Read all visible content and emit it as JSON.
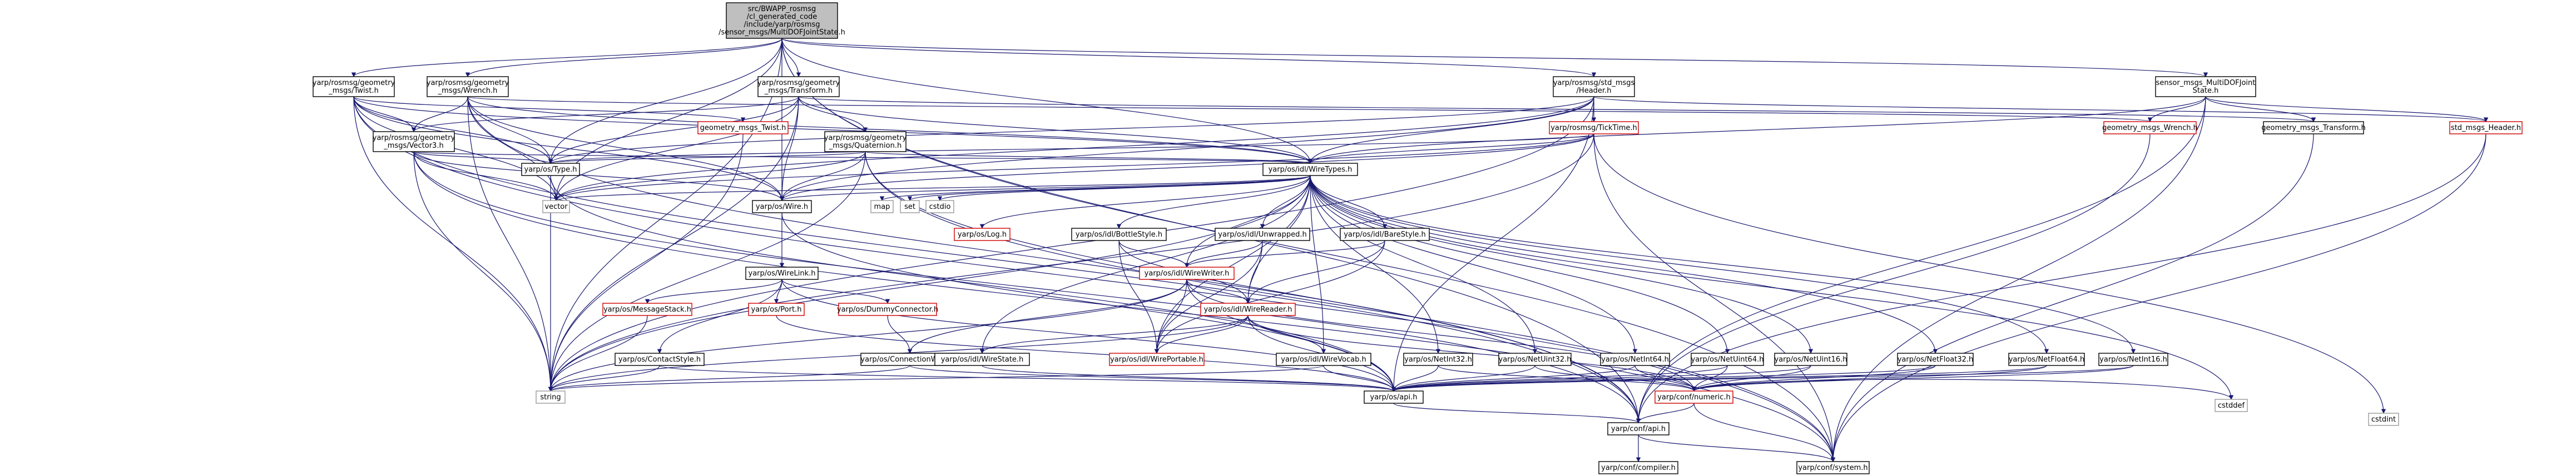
{
  "nodes": [
    {
      "id": "root",
      "lines": [
        "src/BWAPP_rosmsg",
        "/cl_generated_code",
        "/include/yarp/rosmsg",
        "/sensor_msgs/MultiDOFJointState.h"
      ],
      "kind": "root"
    },
    {
      "id": "twist_h",
      "lines": [
        "yarp/rosmsg/geometry",
        "_msgs/Twist.h"
      ],
      "kind": "normal"
    },
    {
      "id": "wrench_h",
      "lines": [
        "yarp/rosmsg/geometry",
        "_msgs/Wrench.h"
      ],
      "kind": "normal"
    },
    {
      "id": "transform_h",
      "lines": [
        "yarp/rosmsg/geometry",
        "_msgs/Transform.h"
      ],
      "kind": "normal"
    },
    {
      "id": "std_header",
      "lines": [
        "yarp/rosmsg/std_msgs",
        "/Header.h"
      ],
      "kind": "normal"
    },
    {
      "id": "multidof",
      "lines": [
        "sensor_msgs_MultiDOFJoint",
        "State.h"
      ],
      "kind": "normal"
    },
    {
      "id": "vector3_h",
      "lines": [
        "yarp/rosmsg/geometry",
        "_msgs/Vector3.h"
      ],
      "kind": "normal"
    },
    {
      "id": "gm_twist",
      "lines": [
        "geometry_msgs_Twist.h"
      ],
      "kind": "red"
    },
    {
      "id": "quaternion_h",
      "lines": [
        "yarp/rosmsg/geometry",
        "_msgs/Quaternion.h"
      ],
      "kind": "normal"
    },
    {
      "id": "ticktime",
      "lines": [
        "yarp/rosmsg/TickTime.h"
      ],
      "kind": "red"
    },
    {
      "id": "gm_wrench",
      "lines": [
        "geometry_msgs_Wrench.h"
      ],
      "kind": "red"
    },
    {
      "id": "gm_transform",
      "lines": [
        "geometry_msgs_Transform.h"
      ],
      "kind": "normal"
    },
    {
      "id": "stdmsgs_header",
      "lines": [
        "std_msgs_Header.h"
      ],
      "kind": "red"
    },
    {
      "id": "type_h",
      "lines": [
        "yarp/os/Type.h"
      ],
      "kind": "normal"
    },
    {
      "id": "wiretypes",
      "lines": [
        "yarp/os/idl/WireTypes.h"
      ],
      "kind": "normal"
    },
    {
      "id": "vector",
      "lines": [
        "vector"
      ],
      "kind": "grey"
    },
    {
      "id": "wire_h",
      "lines": [
        "yarp/os/Wire.h"
      ],
      "kind": "normal"
    },
    {
      "id": "map",
      "lines": [
        "map"
      ],
      "kind": "grey"
    },
    {
      "id": "set",
      "lines": [
        "set"
      ],
      "kind": "grey"
    },
    {
      "id": "cstdio",
      "lines": [
        "cstdio"
      ],
      "kind": "grey"
    },
    {
      "id": "log_h",
      "lines": [
        "yarp/os/Log.h"
      ],
      "kind": "red"
    },
    {
      "id": "bottlestyle",
      "lines": [
        "yarp/os/idl/BottleStyle.h"
      ],
      "kind": "normal"
    },
    {
      "id": "unwrapped",
      "lines": [
        "yarp/os/idl/Unwrapped.h"
      ],
      "kind": "normal"
    },
    {
      "id": "barestyle",
      "lines": [
        "yarp/os/idl/BareStyle.h"
      ],
      "kind": "normal"
    },
    {
      "id": "wirewriter",
      "lines": [
        "yarp/os/idl/WireWriter.h"
      ],
      "kind": "red"
    },
    {
      "id": "wirelink",
      "lines": [
        "yarp/os/WireLink.h"
      ],
      "kind": "normal"
    },
    {
      "id": "messagestack",
      "lines": [
        "yarp/os/MessageStack.h"
      ],
      "kind": "red"
    },
    {
      "id": "port_h",
      "lines": [
        "yarp/os/Port.h"
      ],
      "kind": "red"
    },
    {
      "id": "dummyconn",
      "lines": [
        "yarp/os/DummyConnector.h"
      ],
      "kind": "red"
    },
    {
      "id": "wirereader",
      "lines": [
        "yarp/os/idl/WireReader.h"
      ],
      "kind": "red"
    },
    {
      "id": "contactstyle",
      "lines": [
        "yarp/os/ContactStyle.h"
      ],
      "kind": "normal"
    },
    {
      "id": "connwriter",
      "lines": [
        "yarp/os/ConnectionWriter.h"
      ],
      "kind": "normal"
    },
    {
      "id": "wirestate",
      "lines": [
        "yarp/os/idl/WireState.h"
      ],
      "kind": "normal"
    },
    {
      "id": "wireportable",
      "lines": [
        "yarp/os/idl/WirePortable.h"
      ],
      "kind": "red"
    },
    {
      "id": "wirevocab",
      "lines": [
        "yarp/os/idl/WireVocab.h"
      ],
      "kind": "normal"
    },
    {
      "id": "netint32",
      "lines": [
        "yarp/os/NetInt32.h"
      ],
      "kind": "normal"
    },
    {
      "id": "netuint32",
      "lines": [
        "yarp/os/NetUint32.h"
      ],
      "kind": "normal"
    },
    {
      "id": "netint64",
      "lines": [
        "yarp/os/NetInt64.h"
      ],
      "kind": "normal"
    },
    {
      "id": "netuint16",
      "lines": [
        "yarp/os/NetUint16.h"
      ],
      "kind": "normal"
    },
    {
      "id": "netuint64",
      "lines": [
        "yarp/os/NetUint64.h"
      ],
      "kind": "normal"
    },
    {
      "id": "netfloat32",
      "lines": [
        "yarp/os/NetFloat32.h"
      ],
      "kind": "normal"
    },
    {
      "id": "netfloat64",
      "lines": [
        "yarp/os/NetFloat64.h"
      ],
      "kind": "normal"
    },
    {
      "id": "netint16",
      "lines": [
        "yarp/os/NetInt16.h"
      ],
      "kind": "normal"
    },
    {
      "id": "string",
      "lines": [
        "string"
      ],
      "kind": "grey"
    },
    {
      "id": "os_api",
      "lines": [
        "yarp/os/api.h"
      ],
      "kind": "normal"
    },
    {
      "id": "numeric",
      "lines": [
        "yarp/conf/numeric.h"
      ],
      "kind": "red"
    },
    {
      "id": "cstddef",
      "lines": [
        "cstddef"
      ],
      "kind": "grey"
    },
    {
      "id": "cstdint",
      "lines": [
        "cstdint"
      ],
      "kind": "grey"
    },
    {
      "id": "conf_api",
      "lines": [
        "yarp/conf/api.h"
      ],
      "kind": "normal"
    },
    {
      "id": "compiler",
      "lines": [
        "yarp/conf/compiler.h"
      ],
      "kind": "normal"
    },
    {
      "id": "system",
      "lines": [
        "yarp/conf/system.h"
      ],
      "kind": "normal"
    }
  ],
  "edges": [
    [
      "root",
      "twist_h"
    ],
    [
      "root",
      "wrench_h"
    ],
    [
      "root",
      "transform_h"
    ],
    [
      "root",
      "std_header"
    ],
    [
      "root",
      "multidof"
    ],
    [
      "root",
      "wiretypes"
    ],
    [
      "root",
      "type_h"
    ],
    [
      "root",
      "wire_h"
    ],
    [
      "root",
      "vector"
    ],
    [
      "root",
      "string"
    ],
    [
      "root",
      "conf_api"
    ],
    [
      "root",
      "system"
    ],
    [
      "twist_h",
      "vector3_h"
    ],
    [
      "twist_h",
      "gm_twist"
    ],
    [
      "twist_h",
      "type_h"
    ],
    [
      "twist_h",
      "wire_h"
    ],
    [
      "twist_h",
      "wiretypes"
    ],
    [
      "twist_h",
      "vector"
    ],
    [
      "twist_h",
      "string"
    ],
    [
      "twist_h",
      "conf_api"
    ],
    [
      "twist_h",
      "system"
    ],
    [
      "wrench_h",
      "vector3_h"
    ],
    [
      "wrench_h",
      "gm_wrench"
    ],
    [
      "wrench_h",
      "type_h"
    ],
    [
      "wrench_h",
      "wire_h"
    ],
    [
      "wrench_h",
      "wiretypes"
    ],
    [
      "wrench_h",
      "vector"
    ],
    [
      "wrench_h",
      "string"
    ],
    [
      "wrench_h",
      "conf_api"
    ],
    [
      "transform_h",
      "vector3_h"
    ],
    [
      "transform_h",
      "quaternion_h"
    ],
    [
      "transform_h",
      "gm_transform"
    ],
    [
      "transform_h",
      "type_h"
    ],
    [
      "transform_h",
      "wire_h"
    ],
    [
      "transform_h",
      "wiretypes"
    ],
    [
      "transform_h",
      "vector"
    ],
    [
      "transform_h",
      "string"
    ],
    [
      "std_header",
      "ticktime"
    ],
    [
      "std_header",
      "stdmsgs_header"
    ],
    [
      "std_header",
      "wiretypes"
    ],
    [
      "std_header",
      "type_h"
    ],
    [
      "std_header",
      "wire_h"
    ],
    [
      "std_header",
      "vector"
    ],
    [
      "std_header",
      "string"
    ],
    [
      "std_header",
      "os_api"
    ],
    [
      "multidof",
      "gm_transform"
    ],
    [
      "multidof",
      "stdmsgs_header"
    ],
    [
      "multidof",
      "gm_wrench"
    ],
    [
      "multidof",
      "wiretypes"
    ],
    [
      "multidof",
      "conf_api"
    ],
    [
      "multidof",
      "system"
    ],
    [
      "vector3_h",
      "type_h"
    ],
    [
      "vector3_h",
      "wire_h"
    ],
    [
      "vector3_h",
      "wiretypes"
    ],
    [
      "vector3_h",
      "vector"
    ],
    [
      "vector3_h",
      "string"
    ],
    [
      "vector3_h",
      "conf_api"
    ],
    [
      "vector3_h",
      "system"
    ],
    [
      "quaternion_h",
      "type_h"
    ],
    [
      "quaternion_h",
      "wire_h"
    ],
    [
      "quaternion_h",
      "wiretypes"
    ],
    [
      "quaternion_h",
      "vector"
    ],
    [
      "quaternion_h",
      "string"
    ],
    [
      "quaternion_h",
      "conf_api"
    ],
    [
      "quaternion_h",
      "system"
    ],
    [
      "gm_twist",
      "string"
    ],
    [
      "gm_wrench",
      "conf_api"
    ],
    [
      "gm_transform",
      "system"
    ],
    [
      "stdmsgs_header",
      "system"
    ],
    [
      "stdmsgs_header",
      "conf_api"
    ],
    [
      "ticktime",
      "type_h"
    ],
    [
      "ticktime",
      "wire_h"
    ],
    [
      "ticktime",
      "wiretypes"
    ],
    [
      "ticktime",
      "vector"
    ],
    [
      "ticktime",
      "string"
    ],
    [
      "ticktime",
      "cstdint"
    ],
    [
      "ticktime",
      "system"
    ],
    [
      "type_h",
      "string"
    ],
    [
      "type_h",
      "os_api"
    ],
    [
      "wiretypes",
      "wire_h"
    ],
    [
      "wiretypes",
      "map"
    ],
    [
      "wiretypes",
      "set"
    ],
    [
      "wiretypes",
      "cstdio"
    ],
    [
      "wiretypes",
      "vector"
    ],
    [
      "wiretypes",
      "string"
    ],
    [
      "wiretypes",
      "log_h"
    ],
    [
      "wiretypes",
      "bottlestyle"
    ],
    [
      "wiretypes",
      "unwrapped"
    ],
    [
      "wiretypes",
      "barestyle"
    ],
    [
      "wiretypes",
      "wirewriter"
    ],
    [
      "wiretypes",
      "wirereader"
    ],
    [
      "wiretypes",
      "wirestate"
    ],
    [
      "wiretypes",
      "wireportable"
    ],
    [
      "wiretypes",
      "wirevocab"
    ],
    [
      "wiretypes",
      "netint32"
    ],
    [
      "wiretypes",
      "netuint32"
    ],
    [
      "wiretypes",
      "netint64"
    ],
    [
      "wiretypes",
      "netuint16"
    ],
    [
      "wiretypes",
      "netuint64"
    ],
    [
      "wiretypes",
      "netfloat32"
    ],
    [
      "wiretypes",
      "netfloat64"
    ],
    [
      "wiretypes",
      "netint16"
    ],
    [
      "wiretypes",
      "cstddef"
    ],
    [
      "wire_h",
      "wirelink"
    ],
    [
      "wire_h",
      "os_api"
    ],
    [
      "wirelink",
      "messagestack"
    ],
    [
      "wirelink",
      "port_h"
    ],
    [
      "wirelink",
      "dummyconn"
    ],
    [
      "wirelink",
      "contactstyle"
    ],
    [
      "wirelink",
      "os_api"
    ],
    [
      "messagestack",
      "string"
    ],
    [
      "port_h",
      "os_api"
    ],
    [
      "dummyconn",
      "connwriter"
    ],
    [
      "contactstyle",
      "string"
    ],
    [
      "contactstyle",
      "os_api"
    ],
    [
      "connwriter",
      "string"
    ],
    [
      "connwriter",
      "os_api"
    ],
    [
      "bottlestyle",
      "wirewriter"
    ],
    [
      "bottlestyle",
      "wirereader"
    ],
    [
      "bottlestyle",
      "wireportable"
    ],
    [
      "unwrapped",
      "wirewriter"
    ],
    [
      "unwrapped",
      "wirereader"
    ],
    [
      "unwrapped",
      "wireportable"
    ],
    [
      "barestyle",
      "wirewriter"
    ],
    [
      "barestyle",
      "wirereader"
    ],
    [
      "barestyle",
      "wireportable"
    ],
    [
      "wirewriter",
      "wirereader"
    ],
    [
      "wirewriter",
      "wireportable"
    ],
    [
      "wirewriter",
      "connwriter"
    ],
    [
      "wirewriter",
      "string"
    ],
    [
      "wirewriter",
      "os_api"
    ],
    [
      "wirewriter",
      "numeric"
    ],
    [
      "wirereader",
      "wirestate"
    ],
    [
      "wirereader",
      "wireportable"
    ],
    [
      "wirereader",
      "wirevocab"
    ],
    [
      "wirereader",
      "string"
    ],
    [
      "wirereader",
      "os_api"
    ],
    [
      "wirereader",
      "numeric"
    ],
    [
      "wirestate",
      "os_api"
    ],
    [
      "wirevocab",
      "os_api"
    ],
    [
      "wirevocab",
      "string"
    ],
    [
      "netint32",
      "os_api"
    ],
    [
      "netint32",
      "numeric"
    ],
    [
      "netuint32",
      "os_api"
    ],
    [
      "netuint32",
      "numeric"
    ],
    [
      "netint64",
      "os_api"
    ],
    [
      "netint64",
      "numeric"
    ],
    [
      "netuint16",
      "os_api"
    ],
    [
      "netuint16",
      "numeric"
    ],
    [
      "netuint64",
      "os_api"
    ],
    [
      "netuint64",
      "numeric"
    ],
    [
      "netfloat32",
      "os_api"
    ],
    [
      "netfloat32",
      "numeric"
    ],
    [
      "netfloat64",
      "os_api"
    ],
    [
      "netfloat64",
      "numeric"
    ],
    [
      "netint16",
      "os_api"
    ],
    [
      "netint16",
      "numeric"
    ],
    [
      "os_api",
      "conf_api"
    ],
    [
      "numeric",
      "conf_api"
    ],
    [
      "numeric",
      "cstddef"
    ],
    [
      "numeric",
      "system"
    ],
    [
      "conf_api",
      "compiler"
    ],
    [
      "conf_api",
      "system"
    ]
  ]
}
